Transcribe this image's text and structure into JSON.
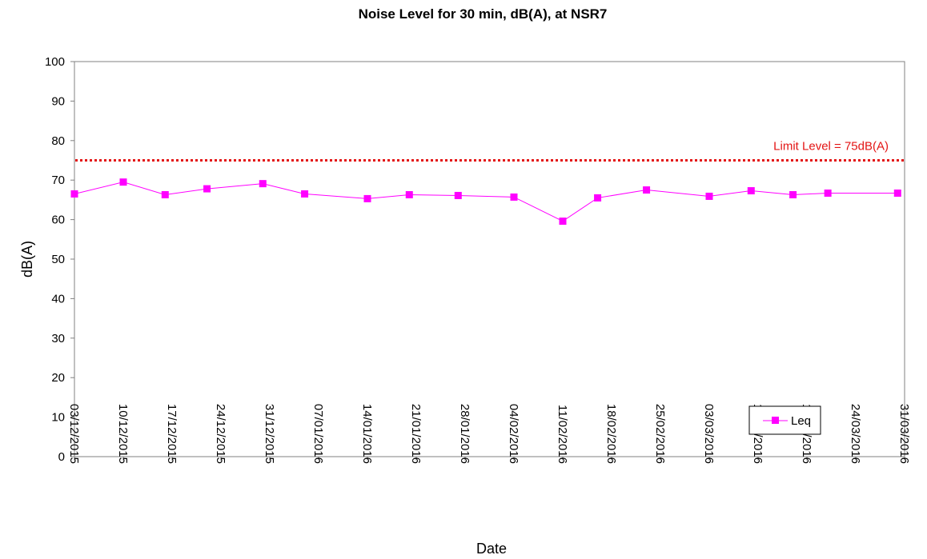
{
  "chart_data": {
    "type": "line",
    "title": "Noise Level for 30 min, dB(A), at NSR7",
    "xlabel": "Date",
    "ylabel": "dB(A)",
    "ylim": [
      0,
      100
    ],
    "yticks": [
      0,
      10,
      20,
      30,
      40,
      50,
      60,
      70,
      80,
      90,
      100
    ],
    "xlim": [
      "2015-12-03",
      "2016-03-31"
    ],
    "xticks": [
      "03/12/2015",
      "10/12/2015",
      "17/12/2015",
      "24/12/2015",
      "31/12/2015",
      "07/01/2016",
      "14/01/2016",
      "21/01/2016",
      "28/01/2016",
      "04/02/2016",
      "11/02/2016",
      "18/02/2016",
      "25/02/2016",
      "03/03/2016",
      "10/03/2016",
      "17/03/2016",
      "24/03/2016",
      "31/03/2016"
    ],
    "grid": false,
    "legend_position": "bottom-right",
    "limit": {
      "value": 75,
      "label": "Limit Level = 75dB(A)",
      "color": "#e31414"
    },
    "series": [
      {
        "name": "Leq",
        "color": "#ff00ff",
        "x": [
          "2015-12-03",
          "2015-12-10",
          "2015-12-16",
          "2015-12-22",
          "2015-12-30",
          "2016-01-05",
          "2016-01-14",
          "2016-01-20",
          "2016-01-27",
          "2016-02-04",
          "2016-02-11",
          "2016-02-16",
          "2016-02-23",
          "2016-03-03",
          "2016-03-09",
          "2016-03-15",
          "2016-03-20",
          "2016-03-30"
        ],
        "y": [
          66.5,
          69.5,
          66.3,
          67.8,
          69.1,
          66.5,
          65.3,
          66.3,
          66.1,
          65.7,
          59.6,
          65.5,
          67.5,
          65.9,
          67.3,
          66.3,
          66.7,
          66.7
        ]
      }
    ]
  }
}
